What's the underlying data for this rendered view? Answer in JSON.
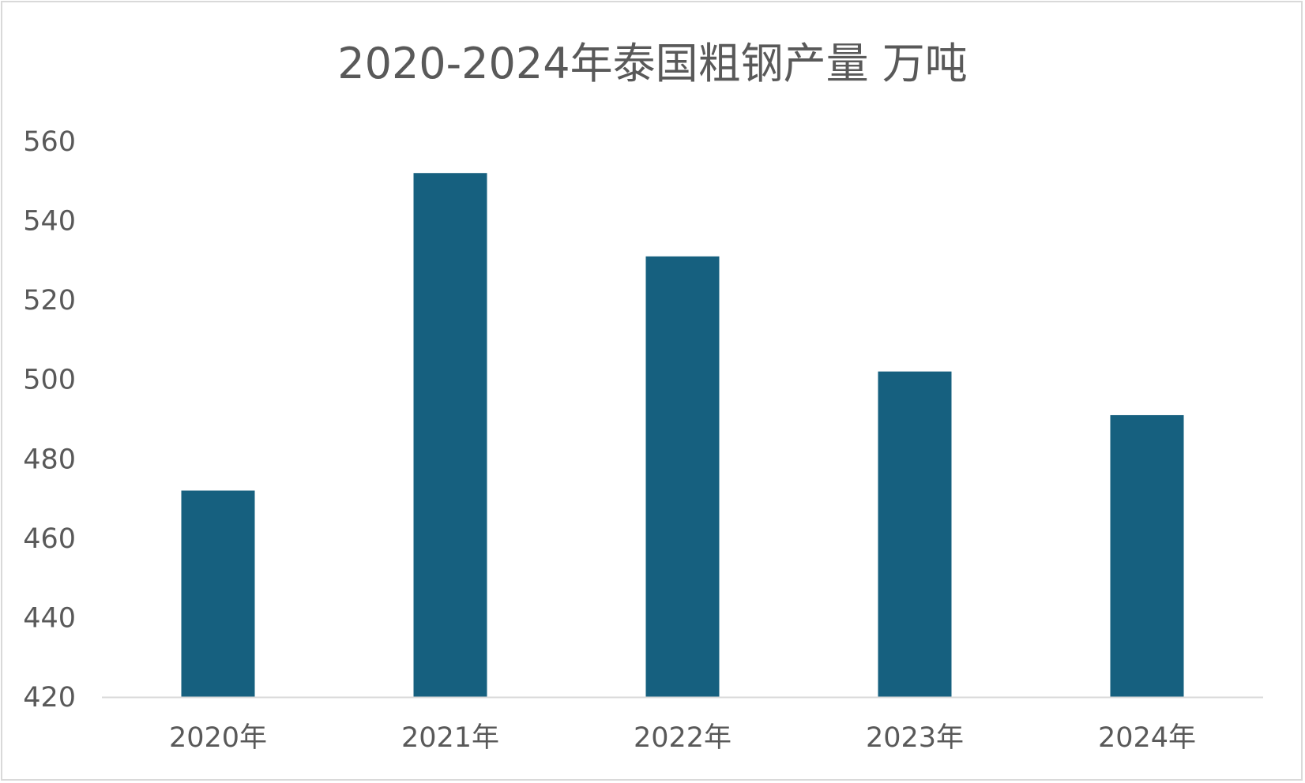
{
  "chart_data": {
    "type": "bar",
    "title": "2020-2024年泰国粗钢产量 万吨",
    "xlabel": "",
    "ylabel": "",
    "categories": [
      "2020年",
      "2021年",
      "2022年",
      "2023年",
      "2024年"
    ],
    "values": [
      472,
      552,
      531,
      502,
      491
    ],
    "ylim": [
      420,
      560
    ],
    "yticks": [
      420,
      440,
      460,
      480,
      500,
      520,
      540,
      560
    ],
    "grid": false,
    "legend": "none",
    "bar_color": "#16607F",
    "axis_color": "#d9d9d9",
    "text_color": "#595959"
  }
}
